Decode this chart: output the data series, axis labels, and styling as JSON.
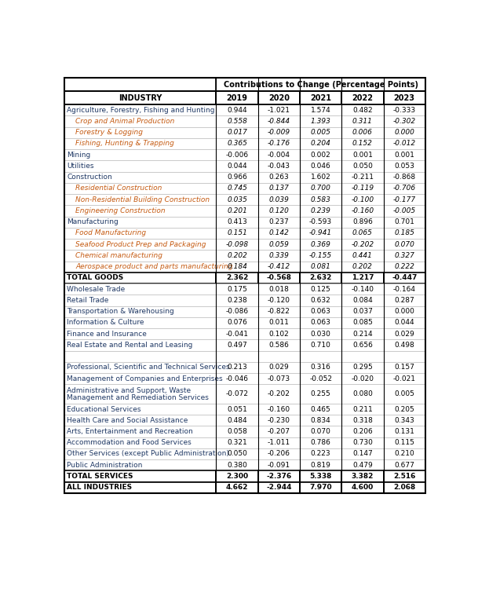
{
  "title": "Contributions to Change (Percentage Points)",
  "columns": [
    "INDUSTRY",
    "2019",
    "2020",
    "2021",
    "2022",
    "2023"
  ],
  "rows": [
    {
      "label": "Agriculture, Forestry, Fishing and Hunting",
      "indent": false,
      "bold": false,
      "italic": false,
      "total": false,
      "color": "navy",
      "values": [
        0.944,
        -1.021,
        1.574,
        0.482,
        -0.333
      ]
    },
    {
      "label": "Crop and Animal Production",
      "indent": true,
      "bold": false,
      "italic": true,
      "total": false,
      "color": "orange_brown",
      "values": [
        0.558,
        -0.844,
        1.393,
        0.311,
        -0.302
      ]
    },
    {
      "label": "Forestry & Logging",
      "indent": true,
      "bold": false,
      "italic": true,
      "total": false,
      "color": "orange_brown",
      "values": [
        0.017,
        -0.009,
        0.005,
        0.006,
        0.0
      ]
    },
    {
      "label": "Fishing, Hunting & Trapping",
      "indent": true,
      "bold": false,
      "italic": true,
      "total": false,
      "color": "orange_brown",
      "values": [
        0.365,
        -0.176,
        0.204,
        0.152,
        -0.012
      ]
    },
    {
      "label": "Mining",
      "indent": false,
      "bold": false,
      "italic": false,
      "total": false,
      "color": "navy",
      "values": [
        -0.006,
        -0.004,
        0.002,
        0.001,
        0.001
      ]
    },
    {
      "label": "Utilities",
      "indent": false,
      "bold": false,
      "italic": false,
      "total": false,
      "color": "navy",
      "values": [
        0.044,
        -0.043,
        0.046,
        0.05,
        0.053
      ]
    },
    {
      "label": "Construction",
      "indent": false,
      "bold": false,
      "italic": false,
      "total": false,
      "color": "navy",
      "values": [
        0.966,
        0.263,
        1.602,
        -0.211,
        -0.868
      ]
    },
    {
      "label": "Residential Construction",
      "indent": true,
      "bold": false,
      "italic": true,
      "total": false,
      "color": "orange_brown",
      "values": [
        0.745,
        0.137,
        0.7,
        -0.119,
        -0.706
      ]
    },
    {
      "label": "Non-Residential Building Construction",
      "indent": true,
      "bold": false,
      "italic": true,
      "total": false,
      "color": "orange_brown",
      "values": [
        0.035,
        0.039,
        0.583,
        -0.1,
        -0.177
      ]
    },
    {
      "label": "Engineering Construction",
      "indent": true,
      "bold": false,
      "italic": true,
      "total": false,
      "color": "orange_brown",
      "values": [
        0.201,
        0.12,
        0.239,
        -0.16,
        -0.005
      ]
    },
    {
      "label": "Manufacturing",
      "indent": false,
      "bold": false,
      "italic": false,
      "total": false,
      "color": "navy",
      "values": [
        0.413,
        0.237,
        -0.593,
        0.896,
        0.701
      ]
    },
    {
      "label": "Food Manufacturing",
      "indent": true,
      "bold": false,
      "italic": true,
      "total": false,
      "color": "orange_brown",
      "values": [
        0.151,
        0.142,
        -0.941,
        0.065,
        0.185
      ]
    },
    {
      "label": "Seafood Product Prep and Packaging",
      "indent": true,
      "bold": false,
      "italic": true,
      "total": false,
      "color": "orange_brown",
      "values": [
        -0.098,
        0.059,
        0.369,
        -0.202,
        0.07
      ]
    },
    {
      "label": "Chemical manufacturing",
      "indent": true,
      "bold": false,
      "italic": true,
      "total": false,
      "color": "orange_brown",
      "values": [
        0.202,
        0.339,
        -0.155,
        0.441,
        0.327
      ]
    },
    {
      "label": "Aerospace product and parts manufacturing",
      "indent": true,
      "bold": false,
      "italic": true,
      "total": false,
      "color": "orange_brown",
      "values": [
        0.184,
        -0.412,
        0.081,
        0.202,
        0.222
      ]
    },
    {
      "label": "TOTAL GOODS",
      "indent": false,
      "bold": true,
      "italic": false,
      "total": true,
      "color": "black",
      "values": [
        2.362,
        -0.568,
        2.632,
        1.217,
        -0.447
      ]
    },
    {
      "label": "Wholesale Trade",
      "indent": false,
      "bold": false,
      "italic": false,
      "total": false,
      "color": "navy",
      "values": [
        0.175,
        0.018,
        0.125,
        -0.14,
        -0.164
      ]
    },
    {
      "label": "Retail Trade",
      "indent": false,
      "bold": false,
      "italic": false,
      "total": false,
      "color": "navy",
      "values": [
        0.238,
        -0.12,
        0.632,
        0.084,
        0.287
      ]
    },
    {
      "label": "Transportation & Warehousing",
      "indent": false,
      "bold": false,
      "italic": false,
      "total": false,
      "color": "navy",
      "values": [
        -0.086,
        -0.822,
        0.063,
        0.037,
        0.0
      ]
    },
    {
      "label": "Information & Culture",
      "indent": false,
      "bold": false,
      "italic": false,
      "total": false,
      "color": "navy",
      "values": [
        0.076,
        0.011,
        0.063,
        0.085,
        0.044
      ]
    },
    {
      "label": "Finance and Insurance",
      "indent": false,
      "bold": false,
      "italic": false,
      "total": false,
      "color": "navy",
      "values": [
        -0.041,
        0.102,
        0.03,
        0.214,
        0.029
      ]
    },
    {
      "label": "Real Estate and Rental and Leasing",
      "indent": false,
      "bold": false,
      "italic": false,
      "total": false,
      "color": "navy",
      "values": [
        0.497,
        0.586,
        0.71,
        0.656,
        0.498
      ]
    },
    {
      "label": "",
      "indent": false,
      "bold": false,
      "italic": false,
      "total": false,
      "color": "black",
      "values": [
        null,
        null,
        null,
        null,
        null
      ]
    },
    {
      "label": "Professional, Scientific and Technical Services",
      "indent": false,
      "bold": false,
      "italic": false,
      "total": false,
      "color": "navy",
      "values": [
        0.213,
        0.029,
        0.316,
        0.295,
        0.157
      ]
    },
    {
      "label": "Management of Companies and Enterprises",
      "indent": false,
      "bold": false,
      "italic": false,
      "total": false,
      "color": "navy",
      "values": [
        -0.046,
        -0.073,
        -0.052,
        -0.02,
        -0.021
      ]
    },
    {
      "label": "Administrative and Support, Waste\nManagement and Remediation Services",
      "indent": false,
      "bold": false,
      "italic": false,
      "total": false,
      "color": "navy",
      "values": [
        -0.072,
        -0.202,
        0.255,
        0.08,
        0.005
      ]
    },
    {
      "label": "Educational Services",
      "indent": false,
      "bold": false,
      "italic": false,
      "total": false,
      "color": "navy",
      "values": [
        0.051,
        -0.16,
        0.465,
        0.211,
        0.205
      ]
    },
    {
      "label": "Health Care and Social Assistance",
      "indent": false,
      "bold": false,
      "italic": false,
      "total": false,
      "color": "navy",
      "values": [
        0.484,
        -0.23,
        0.834,
        0.318,
        0.343
      ]
    },
    {
      "label": "Arts, Entertainment and Recreation",
      "indent": false,
      "bold": false,
      "italic": false,
      "total": false,
      "color": "navy",
      "values": [
        0.058,
        -0.207,
        0.07,
        0.206,
        0.131
      ]
    },
    {
      "label": "Accommodation and Food Services",
      "indent": false,
      "bold": false,
      "italic": false,
      "total": false,
      "color": "navy",
      "values": [
        0.321,
        -1.011,
        0.786,
        0.73,
        0.115
      ]
    },
    {
      "label": "Other Services (except Public Administration)",
      "indent": false,
      "bold": false,
      "italic": false,
      "total": false,
      "color": "navy",
      "values": [
        0.05,
        -0.206,
        0.223,
        0.147,
        0.21
      ]
    },
    {
      "label": "Public Administration",
      "indent": false,
      "bold": false,
      "italic": false,
      "total": false,
      "color": "navy",
      "values": [
        0.38,
        -0.091,
        0.819,
        0.479,
        0.677
      ]
    },
    {
      "label": "TOTAL SERVICES",
      "indent": false,
      "bold": true,
      "italic": false,
      "total": true,
      "color": "black",
      "values": [
        2.3,
        -2.376,
        5.338,
        3.382,
        2.516
      ]
    },
    {
      "label": "ALL INDUSTRIES",
      "indent": false,
      "bold": true,
      "italic": false,
      "total": true,
      "color": "black",
      "values": [
        4.662,
        -2.944,
        7.97,
        4.6,
        2.068
      ]
    }
  ],
  "navy_color": "#1F3864",
  "orange_color": "#C55A11",
  "black_color": "#000000",
  "white": "#ffffff",
  "light_line": "#bfbfbf",
  "heavy_line": "#000000"
}
